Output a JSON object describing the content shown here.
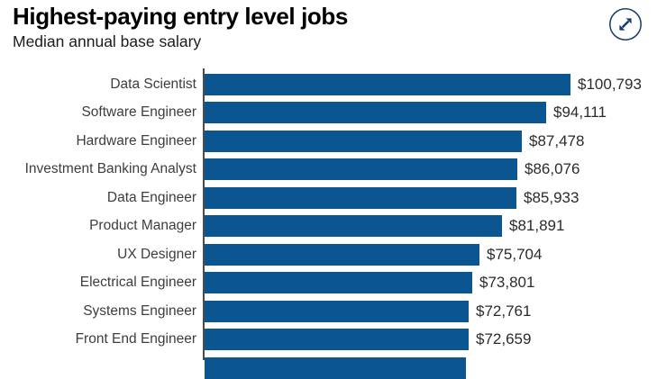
{
  "header": {
    "title": "Highest-paying entry level jobs",
    "subtitle": "Median annual base salary"
  },
  "colors": {
    "bar": "#0B5591",
    "axis": "#4C4C4C",
    "icon": "#1A3A6B",
    "title_text": "#000000",
    "label_text": "#3D3D3D",
    "value_text": "#2B2B2B",
    "background": "#FFFFFF"
  },
  "icons": [
    {
      "name": "expand-arrows-icon",
      "meaning": "expand / open full view"
    }
  ],
  "chart_data": {
    "type": "bar",
    "orientation": "horizontal",
    "title": "Highest-paying entry level jobs",
    "subtitle": "Median annual base salary",
    "categories": [
      "Data Scientist",
      "Software Engineer",
      "Hardware Engineer",
      "Investment Banking Analyst",
      "Data Engineer",
      "Product Manager",
      "UX Designer",
      "Electrical Engineer",
      "Systems Engineer",
      "Front End Engineer"
    ],
    "values": [
      100793,
      94111,
      87478,
      86076,
      85933,
      81891,
      75704,
      73801,
      72761,
      72659
    ],
    "value_labels": [
      "$100,793",
      "$94,111",
      "$87,478",
      "$86,076",
      "$85,933",
      "$81,891",
      "$75,704",
      "$73,801",
      "$72,761",
      "$72,659"
    ],
    "xlim": [
      0,
      100793
    ],
    "grid": false,
    "legend": false,
    "value_labels_position": "end-of-bar",
    "partial_eleventh_bar_cut_off_at_bottom": true
  }
}
